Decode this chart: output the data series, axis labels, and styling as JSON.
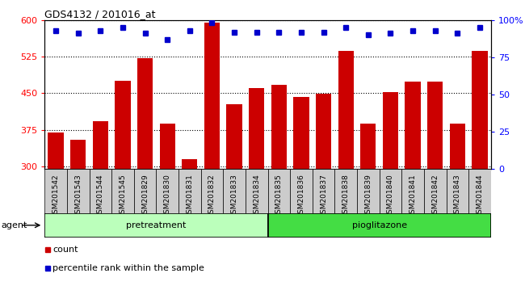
{
  "title": "GDS4132 / 201016_at",
  "samples": [
    "GSM201542",
    "GSM201543",
    "GSM201544",
    "GSM201545",
    "GSM201829",
    "GSM201830",
    "GSM201831",
    "GSM201832",
    "GSM201833",
    "GSM201834",
    "GSM201835",
    "GSM201836",
    "GSM201837",
    "GSM201838",
    "GSM201839",
    "GSM201840",
    "GSM201841",
    "GSM201842",
    "GSM201843",
    "GSM201844"
  ],
  "counts": [
    370,
    355,
    393,
    476,
    522,
    388,
    315,
    595,
    428,
    460,
    467,
    443,
    449,
    537,
    388,
    453,
    473,
    473,
    388,
    537
  ],
  "percentiles": [
    93,
    91,
    93,
    95,
    91,
    87,
    93,
    98,
    92,
    92,
    92,
    92,
    92,
    95,
    90,
    91,
    93,
    93,
    91,
    95
  ],
  "pretreatment_count": 10,
  "pioglitazone_count": 10,
  "ylim_left": [
    295,
    600
  ],
  "ylim_right": [
    0,
    100
  ],
  "yticks_left": [
    300,
    375,
    450,
    525,
    600
  ],
  "yticks_right": [
    0,
    25,
    50,
    75,
    100
  ],
  "bar_color": "#cc0000",
  "dot_color": "#0000cc",
  "pretreatment_color": "#bbffbb",
  "pioglitazone_color": "#44dd44",
  "xtick_bg_color": "#cccccc",
  "plot_bg_color": "#ffffff",
  "legend_count_label": "count",
  "legend_pct_label": "percentile rank within the sample",
  "agent_label": "agent",
  "pretreatment_label": "pretreatment",
  "pioglitazone_label": "pioglitazone"
}
